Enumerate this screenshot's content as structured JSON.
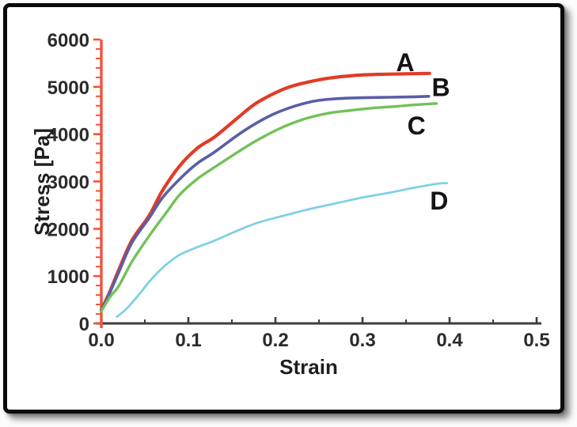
{
  "figure": {
    "background": "#ffffff",
    "frame_color": "#0b0b0b"
  },
  "chart_data": {
    "type": "line",
    "xlabel": "Strain",
    "ylabel": "Stress [Pa]",
    "xlim": [
      0,
      0.5
    ],
    "ylim": [
      0,
      6000
    ],
    "x_tick_values": [
      0,
      0.1,
      0.2,
      0.3,
      0.4,
      0.5
    ],
    "x_tick_labels": [
      "0.0",
      "0.1",
      "0.2",
      "0.3",
      "0.4",
      "0.5"
    ],
    "y_tick_values": [
      0,
      1000,
      2000,
      3000,
      4000,
      5000,
      6000
    ],
    "y_tick_labels": [
      "0",
      "1000",
      "2000",
      "3000",
      "4000",
      "5000",
      "6000"
    ],
    "x_minor_step": 0.05,
    "y_minor_step": 200,
    "grid": false,
    "legend": "inline letter annotations at curve ends",
    "axis_colors": {
      "x_axis": "#3c3c3c",
      "y_axis": "#f1523c"
    },
    "series": [
      {
        "name": "A",
        "color": "#e23b26",
        "label_at": [
          0.349,
          5500
        ],
        "points": [
          [
            0,
            280
          ],
          [
            0.01,
            680
          ],
          [
            0.02,
            1130
          ],
          [
            0.035,
            1750
          ],
          [
            0.055,
            2280
          ],
          [
            0.07,
            2800
          ],
          [
            0.09,
            3330
          ],
          [
            0.11,
            3700
          ],
          [
            0.13,
            3940
          ],
          [
            0.155,
            4320
          ],
          [
            0.175,
            4620
          ],
          [
            0.195,
            4830
          ],
          [
            0.215,
            4990
          ],
          [
            0.235,
            5090
          ],
          [
            0.26,
            5180
          ],
          [
            0.29,
            5240
          ],
          [
            0.32,
            5265
          ],
          [
            0.35,
            5275
          ],
          [
            0.377,
            5285
          ]
        ]
      },
      {
        "name": "B",
        "color": "#5a5ea8",
        "label_at": [
          0.39,
          4970
        ],
        "points": [
          [
            0,
            270
          ],
          [
            0.01,
            660
          ],
          [
            0.02,
            1080
          ],
          [
            0.035,
            1700
          ],
          [
            0.055,
            2230
          ],
          [
            0.07,
            2650
          ],
          [
            0.09,
            3050
          ],
          [
            0.11,
            3380
          ],
          [
            0.13,
            3620
          ],
          [
            0.155,
            3960
          ],
          [
            0.175,
            4200
          ],
          [
            0.195,
            4400
          ],
          [
            0.215,
            4550
          ],
          [
            0.235,
            4660
          ],
          [
            0.25,
            4715
          ],
          [
            0.27,
            4750
          ],
          [
            0.3,
            4770
          ],
          [
            0.33,
            4780
          ],
          [
            0.36,
            4790
          ],
          [
            0.376,
            4800
          ]
        ]
      },
      {
        "name": "C",
        "color": "#72c159",
        "label_at": [
          0.362,
          4160
        ],
        "points": [
          [
            0,
            260
          ],
          [
            0.01,
            560
          ],
          [
            0.02,
            790
          ],
          [
            0.035,
            1300
          ],
          [
            0.055,
            1850
          ],
          [
            0.075,
            2350
          ],
          [
            0.09,
            2720
          ],
          [
            0.11,
            3050
          ],
          [
            0.13,
            3300
          ],
          [
            0.155,
            3600
          ],
          [
            0.175,
            3830
          ],
          [
            0.195,
            4030
          ],
          [
            0.215,
            4200
          ],
          [
            0.235,
            4330
          ],
          [
            0.26,
            4440
          ],
          [
            0.285,
            4500
          ],
          [
            0.31,
            4550
          ],
          [
            0.34,
            4590
          ],
          [
            0.36,
            4620
          ],
          [
            0.385,
            4650
          ]
        ]
      },
      {
        "name": "D",
        "color": "#7dd2e2",
        "label_at": [
          0.388,
          2575
        ],
        "points": [
          [
            0.018,
            140
          ],
          [
            0.03,
            330
          ],
          [
            0.045,
            650
          ],
          [
            0.055,
            880
          ],
          [
            0.065,
            1080
          ],
          [
            0.075,
            1250
          ],
          [
            0.09,
            1450
          ],
          [
            0.11,
            1610
          ],
          [
            0.13,
            1750
          ],
          [
            0.155,
            1950
          ],
          [
            0.18,
            2130
          ],
          [
            0.21,
            2280
          ],
          [
            0.24,
            2420
          ],
          [
            0.27,
            2540
          ],
          [
            0.3,
            2660
          ],
          [
            0.33,
            2760
          ],
          [
            0.36,
            2870
          ],
          [
            0.385,
            2950
          ],
          [
            0.397,
            2965
          ]
        ]
      }
    ]
  }
}
